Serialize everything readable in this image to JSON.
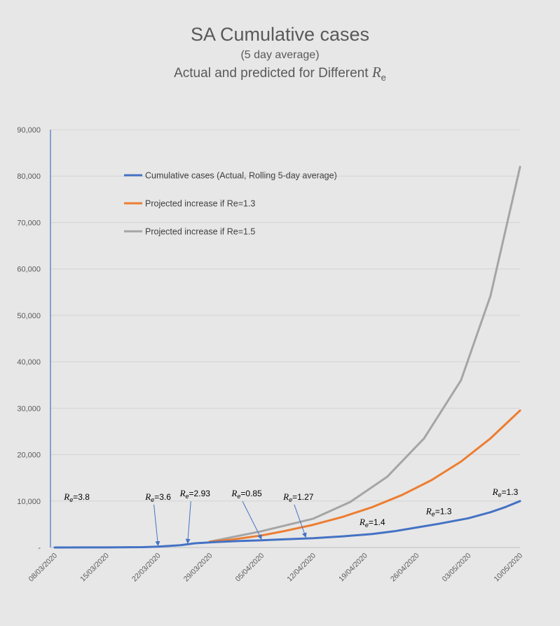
{
  "chart_data": {
    "type": "line",
    "title": "SA Cumulative cases",
    "subtitle": "(5 day average)",
    "subtitle2_prefix": "Actual and predicted for Different ",
    "subtitle2_var": "R",
    "subtitle2_sub": "e",
    "xlabel": "",
    "ylabel": "",
    "ylim": [
      0,
      90000
    ],
    "yticks": [
      "-",
      "10,000",
      "20,000",
      "30,000",
      "40,000",
      "50,000",
      "60,000",
      "70,000",
      "80,000",
      "90,000"
    ],
    "x_axis_type": "date",
    "xlim": [
      "2020-03-08",
      "2020-05-10"
    ],
    "xtick_labels": [
      "08/03/2020",
      "15/03/2020",
      "22/03/2020",
      "29/03/2020",
      "05/04/2020",
      "12/04/2020",
      "19/04/2020",
      "26/04/2020",
      "03/05/2020",
      "10/05/2020"
    ],
    "xtick_dates": [
      "2020-03-08",
      "2020-03-15",
      "2020-03-22",
      "2020-03-29",
      "2020-04-05",
      "2020-04-12",
      "2020-04-19",
      "2020-04-26",
      "2020-05-03",
      "2020-05-10"
    ],
    "grid": true,
    "legend_position": "upper-left",
    "series": [
      {
        "name": "Cumulative cases (Actual, Rolling 5-day average)",
        "color": "#4472c4",
        "points": [
          [
            "2020-03-08",
            0
          ],
          [
            "2020-03-15",
            10
          ],
          [
            "2020-03-20",
            80
          ],
          [
            "2020-03-22",
            200
          ],
          [
            "2020-03-25",
            500
          ],
          [
            "2020-03-27",
            900
          ],
          [
            "2020-03-30",
            1200
          ],
          [
            "2020-04-02",
            1400
          ],
          [
            "2020-04-05",
            1550
          ],
          [
            "2020-04-08",
            1750
          ],
          [
            "2020-04-12",
            2000
          ],
          [
            "2020-04-16",
            2400
          ],
          [
            "2020-04-20",
            2900
          ],
          [
            "2020-04-23",
            3500
          ],
          [
            "2020-04-26",
            4300
          ],
          [
            "2020-04-29",
            5100
          ],
          [
            "2020-05-03",
            6300
          ],
          [
            "2020-05-06",
            7600
          ],
          [
            "2020-05-08",
            8700
          ],
          [
            "2020-05-10",
            10000
          ]
        ]
      },
      {
        "name": "Projected increase if Re=1.3",
        "color": "#ed7d31",
        "points": [
          [
            "2020-03-29",
            1250
          ],
          [
            "2020-04-01",
            1700
          ],
          [
            "2020-04-05",
            2600
          ],
          [
            "2020-04-08",
            3500
          ],
          [
            "2020-04-12",
            4900
          ],
          [
            "2020-04-16",
            6600
          ],
          [
            "2020-04-20",
            8700
          ],
          [
            "2020-04-24",
            11300
          ],
          [
            "2020-04-28",
            14500
          ],
          [
            "2020-05-02",
            18500
          ],
          [
            "2020-05-06",
            23500
          ],
          [
            "2020-05-10",
            29500
          ]
        ]
      },
      {
        "name": "Projected increase if Re=1.5",
        "color": "#a5a5a5",
        "points": [
          [
            "2020-03-29",
            1250
          ],
          [
            "2020-04-05",
            3500
          ],
          [
            "2020-04-12",
            6200
          ],
          [
            "2020-04-17",
            9800
          ],
          [
            "2020-04-22",
            15200
          ],
          [
            "2020-04-27",
            23500
          ],
          [
            "2020-05-02",
            36000
          ],
          [
            "2020-05-06",
            54200
          ],
          [
            "2020-05-10",
            82000
          ]
        ]
      }
    ],
    "annotations": [
      {
        "var": "R",
        "sub": "e",
        "rest": "=3.8",
        "label_date": "2020-03-11",
        "label_value": 10300,
        "arrow": null
      },
      {
        "var": "R",
        "sub": "e",
        "rest": "=3.6",
        "label_date": "2020-03-22",
        "label_value": 10300,
        "arrow": [
          "2020-03-22",
          100
        ]
      },
      {
        "var": "R",
        "sub": "e",
        "rest": "=2.93",
        "label_date": "2020-03-27",
        "label_value": 11000,
        "arrow": [
          "2020-03-26",
          600
        ]
      },
      {
        "var": "R",
        "sub": "e",
        "rest": "=0.85",
        "label_date": "2020-04-03",
        "label_value": 11000,
        "arrow": [
          "2020-04-05",
          1500
        ]
      },
      {
        "var": "R",
        "sub": "e",
        "rest": "=1.27",
        "label_date": "2020-04-10",
        "label_value": 10300,
        "arrow": [
          "2020-04-11",
          1900
        ]
      },
      {
        "var": "R",
        "sub": "e",
        "rest": "=1.4",
        "label_date": "2020-04-20",
        "label_value": 4800,
        "arrow": null
      },
      {
        "var": "R",
        "sub": "e",
        "rest": "=1.3",
        "label_date": "2020-04-29",
        "label_value": 7200,
        "arrow": null
      },
      {
        "var": "R",
        "sub": "e",
        "rest": "=1.3",
        "label_date": "2020-05-08",
        "label_value": 11300,
        "arrow": null
      }
    ]
  }
}
